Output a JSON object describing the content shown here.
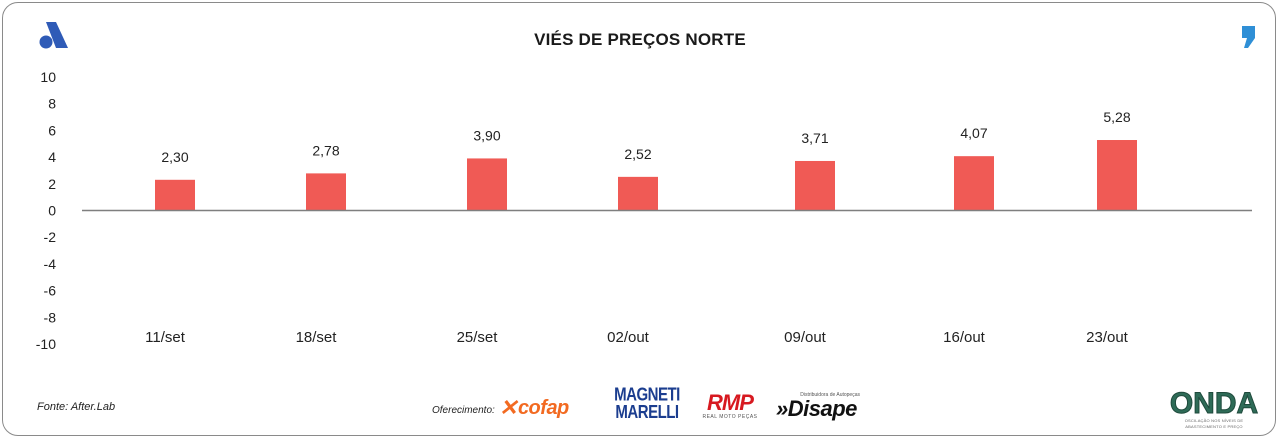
{
  "chart_data": {
    "type": "bar",
    "title": "VIÉS DE PREÇOS NORTE",
    "categories": [
      "11/set",
      "18/set",
      "25/set",
      "02/out",
      "09/out",
      "16/out",
      "23/out"
    ],
    "values": [
      2.3,
      2.78,
      3.9,
      2.52,
      3.71,
      4.07,
      5.28
    ],
    "data_labels": [
      "2,30",
      "2,78",
      "3,90",
      "2,52",
      "3,71",
      "4,07",
      "5,28"
    ],
    "ylim": [
      -10,
      10
    ],
    "yticks": [
      10,
      8,
      6,
      4,
      2,
      0,
      -2,
      -4,
      -6,
      -8,
      -10
    ],
    "ytick_labels": [
      "10",
      "8",
      "6",
      "4",
      "2",
      "0",
      "-2",
      "-4",
      "-6",
      "-8",
      "-10"
    ],
    "xlabel": "",
    "ylabel": "",
    "grid": false,
    "legend": "none",
    "bar_color": "#f05a55",
    "axis_color": "#7f7f7f"
  },
  "footer": {
    "source": "Fonte: After.Lab",
    "sponsor_label": "Oferecimento:",
    "sponsors": {
      "cofap": "cofap",
      "magneti_line1": "MAGNETI",
      "magneti_line2": "MARELLI",
      "rmp": "RMP",
      "rmp_sub": "REAL MOTO PEÇAS",
      "disape": "»Disape",
      "disape_tag": "Distribuidora de Autopeças",
      "onda": "ONDA",
      "onda_sub": "OSCILAÇÃO NOS NÍVEIS DE ABASTECIMENTO E PREÇO"
    }
  },
  "logos": {
    "left_logo_color": "#2f5bb7",
    "right_logo_color": "#2f8fd6"
  }
}
